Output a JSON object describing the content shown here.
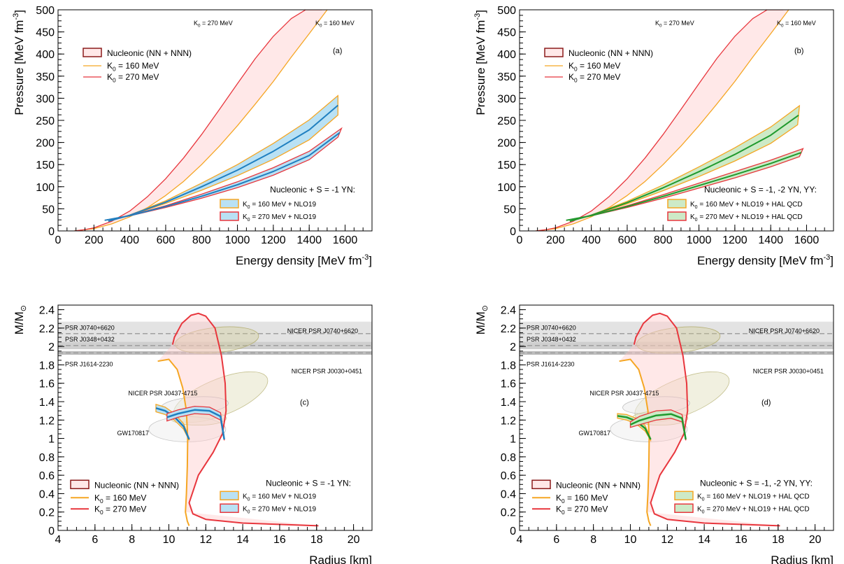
{
  "chart_data": [
    {
      "type": "line",
      "panel_label": "(a)",
      "xlabel": "Energy density [MeV fm",
      "xlabel_sup": "-3",
      "xlabel_tail": "]",
      "ylabel": "Pressure [MeV fm",
      "ylabel_sup": "-3",
      "ylabel_tail": "]",
      "xlim": [
        0,
        1750
      ],
      "ylim": [
        0,
        500
      ],
      "xticks": [
        0,
        200,
        400,
        600,
        800,
        1000,
        1200,
        1400,
        1600
      ],
      "yticks": [
        0,
        50,
        100,
        150,
        200,
        250,
        300,
        350,
        400,
        450,
        500
      ],
      "curve_labels": [
        {
          "text": "K = 270 MeV",
          "color": "#e8363d"
        },
        {
          "text": "K = 160 MeV",
          "color": "#f5a623"
        }
      ],
      "legend_main": [
        "Nucleonic (NN + NNN)",
        "K = 160 MeV",
        "K = 270 MeV"
      ],
      "legend_hyp_title": "Nucleonic + S = -1 YN:",
      "legend_hyp": [
        "K = 160 MeV + NLO19",
        "K = 270 MeV + NLO19"
      ],
      "band_color": "#b9e1f4",
      "center_color": "#1f7fc0",
      "series": [
        {
          "name": "K = 160 MeV",
          "x": [
            90,
            200,
            300,
            400,
            500,
            600,
            700,
            800,
            900,
            1000,
            1100,
            1200,
            1300,
            1400,
            1500
          ],
          "values": [
            0,
            5,
            16,
            32,
            53,
            80,
            112,
            150,
            192,
            238,
            287,
            338,
            393,
            446,
            500
          ]
        },
        {
          "name": "K = 270 MeV",
          "x": [
            90,
            150,
            200,
            300,
            400,
            500,
            600,
            700,
            800,
            900,
            1000,
            1100,
            1200,
            1300,
            1380,
            1470
          ],
          "values": [
            0,
            3,
            7,
            22,
            45,
            78,
            118,
            165,
            218,
            275,
            333,
            390,
            440,
            480,
            500,
            500
          ]
        },
        {
          "name": "K = 160 MeV + NLO19 (upper)",
          "x": [
            280,
            400,
            600,
            800,
            1000,
            1200,
            1400,
            1560
          ],
          "values": [
            22,
            36,
            68,
            108,
            150,
            198,
            251,
            306
          ]
        },
        {
          "name": "K = 160 MeV + NLO19 (lower)",
          "x": [
            280,
            400,
            600,
            800,
            1000,
            1200,
            1400,
            1560
          ],
          "values": [
            22,
            35,
            62,
            92,
            125,
            162,
            206,
            262
          ]
        },
        {
          "name": "K = 160 MeV + NLO19 (center)",
          "x": [
            280,
            400,
            600,
            800,
            1000,
            1200,
            1400,
            1550
          ],
          "values": [
            22,
            35,
            65,
            100,
            137,
            179,
            226,
            267
          ]
        },
        {
          "name": "K = 270 MeV + NLO19 (upper)",
          "x": [
            260,
            400,
            600,
            800,
            1000,
            1200,
            1400,
            1580
          ],
          "values": [
            24,
            35,
            57,
            83,
            111,
            143,
            180,
            232
          ]
        },
        {
          "name": "K = 270 MeV + NLO19 (lower)",
          "x": [
            260,
            400,
            600,
            800,
            1000,
            1200,
            1400,
            1560
          ],
          "values": [
            24,
            34,
            53,
            74,
            98,
            126,
            161,
            212
          ]
        },
        {
          "name": "K = 270 MeV + NLO19 (center)",
          "x": [
            260,
            400,
            600,
            800,
            1000,
            1200,
            1400,
            1560
          ],
          "values": [
            24,
            34,
            55,
            78,
            103,
            133,
            168,
            216
          ]
        }
      ]
    },
    {
      "type": "line",
      "panel_label": "(b)",
      "xlabel": "Energy density [MeV fm",
      "xlabel_sup": "-3",
      "xlabel_tail": "]",
      "ylabel": "Pressure [MeV fm",
      "ylabel_sup": "-3",
      "ylabel_tail": "]",
      "xlim": [
        0,
        1750
      ],
      "ylim": [
        0,
        500
      ],
      "xticks": [
        0,
        200,
        400,
        600,
        800,
        1000,
        1200,
        1400,
        1600
      ],
      "yticks": [
        0,
        50,
        100,
        150,
        200,
        250,
        300,
        350,
        400,
        450,
        500
      ],
      "curve_labels": [
        {
          "text": "K = 270 MeV",
          "color": "#e8363d"
        },
        {
          "text": "K = 160 MeV",
          "color": "#f5a623"
        }
      ],
      "legend_main": [
        "Nucleonic (NN + NNN)",
        "K = 160 MeV",
        "K = 270 MeV"
      ],
      "legend_hyp_title": "Nucleonic + S = -1, -2 YN, YY:",
      "legend_hyp": [
        "K = 160 MeV + NLO19 + HAL QCD",
        "K = 270 MeV + NLO19 + HAL QCD"
      ],
      "band_color": "#cdeac7",
      "center_color": "#1f9a2e",
      "series": [
        {
          "name": "K = 160 MeV",
          "x": [
            90,
            200,
            300,
            400,
            500,
            600,
            700,
            800,
            900,
            1000,
            1100,
            1200,
            1300,
            1400,
            1500
          ],
          "values": [
            0,
            5,
            16,
            32,
            53,
            80,
            112,
            150,
            192,
            238,
            287,
            338,
            393,
            446,
            500
          ]
        },
        {
          "name": "K = 270 MeV",
          "x": [
            90,
            150,
            200,
            300,
            400,
            500,
            600,
            700,
            800,
            900,
            1000,
            1100,
            1200,
            1300,
            1380,
            1470
          ],
          "values": [
            0,
            3,
            7,
            22,
            45,
            78,
            118,
            165,
            218,
            275,
            333,
            390,
            440,
            480,
            500,
            500
          ]
        },
        {
          "name": "K = 160 MeV + NLO19 + HAL QCD (upper)",
          "x": [
            280,
            400,
            600,
            800,
            1000,
            1200,
            1400,
            1560
          ],
          "values": [
            22,
            36,
            67,
            104,
            145,
            188,
            235,
            283
          ]
        },
        {
          "name": "K = 160 MeV + NLO19 + HAL QCD (lower)",
          "x": [
            280,
            400,
            600,
            800,
            1000,
            1200,
            1400,
            1550
          ],
          "values": [
            22,
            35,
            61,
            91,
            123,
            158,
            198,
            240
          ]
        },
        {
          "name": "K = 160 MeV + NLO19 + HAL QCD (center)",
          "x": [
            280,
            400,
            600,
            800,
            1000,
            1200,
            1400,
            1550
          ],
          "values": [
            22,
            35,
            64,
            99,
            135,
            174,
            213,
            246
          ]
        },
        {
          "name": "K = 270 MeV + NLO19 + HAL QCD (upper)",
          "x": [
            260,
            400,
            600,
            800,
            1000,
            1200,
            1400,
            1580
          ],
          "values": [
            24,
            35,
            57,
            82,
            108,
            134,
            160,
            186
          ]
        },
        {
          "name": "K = 270 MeV + NLO19 + HAL QCD (lower)",
          "x": [
            260,
            400,
            600,
            800,
            1000,
            1200,
            1400,
            1560
          ],
          "values": [
            24,
            34,
            53,
            74,
            97,
            120,
            145,
            168
          ]
        },
        {
          "name": "K = 270 MeV + NLO19 + HAL QCD (center)",
          "x": [
            260,
            400,
            600,
            800,
            1000,
            1200,
            1400,
            1560
          ],
          "values": [
            24,
            34,
            55,
            77,
            100,
            124,
            150,
            174
          ]
        }
      ]
    },
    {
      "type": "line",
      "panel_label": "(c)",
      "xlabel": "Radius [km]",
      "ylabel": "M/M",
      "xlim": [
        4,
        21
      ],
      "ylim": [
        0,
        2.45
      ],
      "xticks": [
        4,
        6,
        8,
        10,
        12,
        14,
        16,
        18,
        20
      ],
      "yticks": [
        0,
        0.2,
        0.4,
        0.6,
        0.8,
        1,
        1.2,
        1.4,
        1.6,
        1.8,
        2,
        2.2,
        2.4
      ],
      "observations": [
        {
          "label": "PSR J0740+6620",
          "mass": 2.14,
          "low": 2.04,
          "high": 2.27
        },
        {
          "label": "PSR J0348+0432",
          "mass": 2.01,
          "low": 1.97,
          "high": 2.05
        },
        {
          "label": "PSR J1614-2230",
          "mass": 1.93,
          "low": 1.91,
          "high": 1.95
        }
      ],
      "region_labels": [
        "NICER PSR J0740+6620",
        "NICER PSR J0030+0451",
        "NICER PSR J0437-4715",
        "GW170817"
      ],
      "legend_main": [
        "Nucleonic (NN + NNN)",
        "K = 160 MeV",
        "K = 270 MeV"
      ],
      "legend_hyp_title": "Nucleonic + S = -1 YN:",
      "legend_hyp": [
        "K = 160 MeV + NLO19",
        "K = 270 MeV + NLO19"
      ],
      "band_color": "#b9e1f4",
      "center_color": "#1f7fc0",
      "series": [
        {
          "name": "K = 160 MeV",
          "x": [
            11.1,
            11.0,
            10.9,
            10.95,
            11.0,
            11.02,
            10.95,
            10.75,
            10.45,
            10.0,
            9.4
          ],
          "values": [
            0.05,
            0.1,
            0.2,
            0.4,
            0.7,
            1.0,
            1.3,
            1.55,
            1.75,
            1.86,
            1.84
          ]
        },
        {
          "name": "K = 270 MeV",
          "x": [
            18.1,
            14.0,
            12.0,
            11.3,
            11.1,
            11.6,
            12.4,
            12.9,
            13.1,
            13.05,
            12.85,
            12.5,
            12.0,
            11.6,
            11.2,
            10.7,
            10.3,
            10.2
          ],
          "values": [
            0.05,
            0.08,
            0.12,
            0.18,
            0.3,
            0.6,
            0.85,
            1.05,
            1.3,
            1.6,
            1.9,
            2.2,
            2.33,
            2.36,
            2.34,
            2.25,
            2.1,
            2.02
          ]
        },
        {
          "name": "K = 160 MeV + NLO19 (upper)",
          "x": [
            11.1,
            10.8,
            10.3,
            9.8,
            9.3
          ],
          "values": [
            1.0,
            1.16,
            1.27,
            1.34,
            1.37
          ]
        },
        {
          "name": "K = 160 MeV + NLO19 (lower)",
          "x": [
            11.1,
            10.8,
            10.3,
            9.8,
            9.3
          ],
          "values": [
            0.98,
            1.1,
            1.2,
            1.26,
            1.29
          ]
        },
        {
          "name": "K = 270 MeV + NLO19 (upper)",
          "x": [
            13.0,
            12.8,
            12.2,
            11.4,
            10.5,
            9.9
          ],
          "values": [
            1.0,
            1.28,
            1.34,
            1.35,
            1.31,
            1.27
          ]
        },
        {
          "name": "K = 270 MeV + NLO19 (lower)",
          "x": [
            13.0,
            12.8,
            12.2,
            11.4,
            10.5,
            9.9
          ],
          "values": [
            0.98,
            1.2,
            1.26,
            1.27,
            1.23,
            1.19
          ]
        }
      ]
    },
    {
      "type": "line",
      "panel_label": "(d)",
      "xlabel": "Radius [km]",
      "ylabel": "M/M",
      "xlim": [
        4,
        21
      ],
      "ylim": [
        0,
        2.45
      ],
      "xticks": [
        4,
        6,
        8,
        10,
        12,
        14,
        16,
        18,
        20
      ],
      "yticks": [
        0,
        0.2,
        0.4,
        0.6,
        0.8,
        1,
        1.2,
        1.4,
        1.6,
        1.8,
        2,
        2.2,
        2.4
      ],
      "observations": [
        {
          "label": "PSR J0740+6620",
          "mass": 2.14,
          "low": 2.04,
          "high": 2.27
        },
        {
          "label": "PSR J0348+0432",
          "mass": 2.01,
          "low": 1.97,
          "high": 2.05
        },
        {
          "label": "PSR J1614-2230",
          "mass": 1.93,
          "low": 1.91,
          "high": 1.95
        }
      ],
      "region_labels": [
        "NICER PSR J0740+6620",
        "NICER PSR J0030+0451",
        "NICER PSR J0437-4715",
        "GW170817"
      ],
      "legend_main": [
        "Nucleonic (NN + NNN)",
        "K = 160 MeV",
        "K = 270 MeV"
      ],
      "legend_hyp_title": "Nucleonic + S = -1, -2 YN, YY:",
      "legend_hyp": [
        "K = 160 MeV + NLO19 + HAL QCD",
        "K = 270 MeV + NLO19 + HAL QCD"
      ],
      "band_color": "#cdeac7",
      "center_color": "#1f9a2e",
      "series": [
        {
          "name": "K = 160 MeV",
          "x": [
            11.1,
            11.0,
            10.9,
            10.95,
            11.0,
            11.02,
            10.95,
            10.75,
            10.45,
            10.0,
            9.4
          ],
          "values": [
            0.05,
            0.1,
            0.2,
            0.4,
            0.7,
            1.0,
            1.3,
            1.55,
            1.75,
            1.86,
            1.84
          ]
        },
        {
          "name": "K = 270 MeV",
          "x": [
            18.1,
            14.0,
            12.0,
            11.3,
            11.1,
            11.6,
            12.4,
            12.9,
            13.1,
            13.05,
            12.85,
            12.5,
            12.0,
            11.6,
            11.2,
            10.7,
            10.3,
            10.2
          ],
          "values": [
            0.05,
            0.08,
            0.12,
            0.18,
            0.3,
            0.6,
            0.85,
            1.05,
            1.3,
            1.6,
            1.9,
            2.2,
            2.33,
            2.36,
            2.34,
            2.25,
            2.1,
            2.02
          ]
        },
        {
          "name": "K = 160 MeV + NLO19 + HAL QCD (upper)",
          "x": [
            11.1,
            10.8,
            10.3,
            9.8,
            9.3
          ],
          "values": [
            1.0,
            1.14,
            1.22,
            1.26,
            1.27
          ]
        },
        {
          "name": "K = 160 MeV + NLO19 + HAL QCD (lower)",
          "x": [
            11.1,
            10.8,
            10.3,
            9.8,
            9.3
          ],
          "values": [
            0.98,
            1.08,
            1.16,
            1.2,
            1.22
          ]
        },
        {
          "name": "K = 270 MeV + NLO19 + HAL QCD (upper)",
          "x": [
            13.0,
            12.8,
            12.2,
            11.4,
            10.5,
            10.0
          ],
          "values": [
            1.0,
            1.26,
            1.31,
            1.3,
            1.24,
            1.18
          ]
        },
        {
          "name": "K = 270 MeV + NLO19 + HAL QCD (lower)",
          "x": [
            13.0,
            12.8,
            12.2,
            11.4,
            10.5,
            10.0
          ],
          "values": [
            0.98,
            1.18,
            1.22,
            1.2,
            1.15,
            1.12
          ]
        }
      ]
    }
  ]
}
